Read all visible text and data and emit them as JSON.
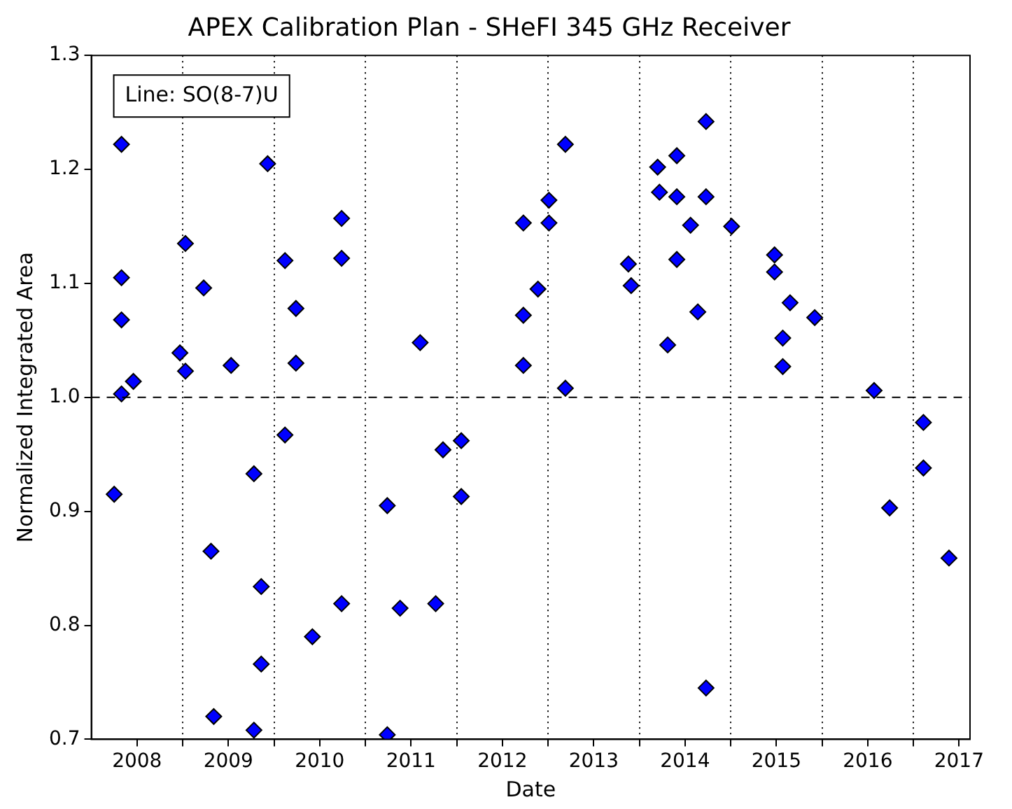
{
  "chart_data": {
    "type": "scatter",
    "title": "APEX Calibration Plan - SHeFI 345 GHz Receiver",
    "xlabel": "Date",
    "ylabel": "Normalized Integrated Area",
    "annotations": [
      "Line: SO(8-7)U"
    ],
    "marker": "diamond",
    "grid": "x",
    "legend": false,
    "xlim": [
      2008,
      2017.62
    ],
    "ylim": [
      0.7,
      1.3
    ],
    "xticks": [
      {
        "value": 2008.5,
        "label": "2008"
      },
      {
        "value": 2009,
        "label": null
      },
      {
        "value": 2009.5,
        "label": "2009"
      },
      {
        "value": 2010,
        "label": null
      },
      {
        "value": 2010.5,
        "label": "2010"
      },
      {
        "value": 2011,
        "label": null
      },
      {
        "value": 2011.5,
        "label": "2011"
      },
      {
        "value": 2012,
        "label": null
      },
      {
        "value": 2012.5,
        "label": "2012"
      },
      {
        "value": 2013,
        "label": null
      },
      {
        "value": 2013.5,
        "label": "2013"
      },
      {
        "value": 2014,
        "label": null
      },
      {
        "value": 2014.5,
        "label": "2014"
      },
      {
        "value": 2015,
        "label": null
      },
      {
        "value": 2015.5,
        "label": "2015"
      },
      {
        "value": 2016,
        "label": null
      },
      {
        "value": 2016.5,
        "label": "2016"
      },
      {
        "value": 2017,
        "label": null
      },
      {
        "value": 2017.5,
        "label": "2017"
      }
    ],
    "yticks": [
      0.7,
      0.8,
      0.9,
      {
        "value": 1.0,
        "label": "1.0"
      },
      1.1,
      1.2,
      1.3
    ],
    "ref_lines": [
      {
        "axis": "y",
        "value": 1.0,
        "label": null,
        "color": "#000000",
        "line_style": "dashed"
      }
    ],
    "series": [
      {
        "color": "#0000ff",
        "x": [
          2008.25,
          2008.33,
          2008.33,
          2008.33,
          2008.33,
          2008.46,
          2008.97,
          2009.03,
          2009.03,
          2009.23,
          2009.31,
          2009.34,
          2009.53,
          2009.78,
          2009.78,
          2009.86,
          2009.86,
          2009.93,
          2010.12,
          2010.12,
          2010.24,
          2010.24,
          2010.42,
          2010.74,
          2010.74,
          2010.74,
          2011.24,
          2011.24,
          2011.38,
          2011.6,
          2011.77,
          2011.85,
          2012.05,
          2012.05,
          2012.73,
          2012.73,
          2012.73,
          2012.89,
          2013.01,
          2013.01,
          2013.19,
          2013.19,
          2013.88,
          2013.91,
          2014.2,
          2014.22,
          2014.31,
          2014.41,
          2014.41,
          2014.41,
          2014.56,
          2014.64,
          2014.73,
          2014.73,
          2014.73,
          2015.01,
          2015.48,
          2015.48,
          2015.57,
          2015.57,
          2015.65,
          2015.92,
          2016.57,
          2016.74,
          2017.11,
          2017.11,
          2017.39
        ],
        "values": [
          0.915,
          1.222,
          1.105,
          1.068,
          1.003,
          1.014,
          1.039,
          1.135,
          1.023,
          1.096,
          0.865,
          0.72,
          1.028,
          0.933,
          0.708,
          0.834,
          0.766,
          1.205,
          1.12,
          0.967,
          1.078,
          1.03,
          0.79,
          1.157,
          1.122,
          0.819,
          0.905,
          0.704,
          0.815,
          1.048,
          0.819,
          0.954,
          0.962,
          0.913,
          1.153,
          1.072,
          1.028,
          1.095,
          1.173,
          1.153,
          1.222,
          1.008,
          1.117,
          1.098,
          1.202,
          1.18,
          1.046,
          1.212,
          1.176,
          1.121,
          1.151,
          1.075,
          1.242,
          1.176,
          0.745,
          1.15,
          1.125,
          1.11,
          1.052,
          1.027,
          1.083,
          1.07,
          1.006,
          0.903,
          0.978,
          0.938,
          0.859
        ]
      }
    ]
  }
}
